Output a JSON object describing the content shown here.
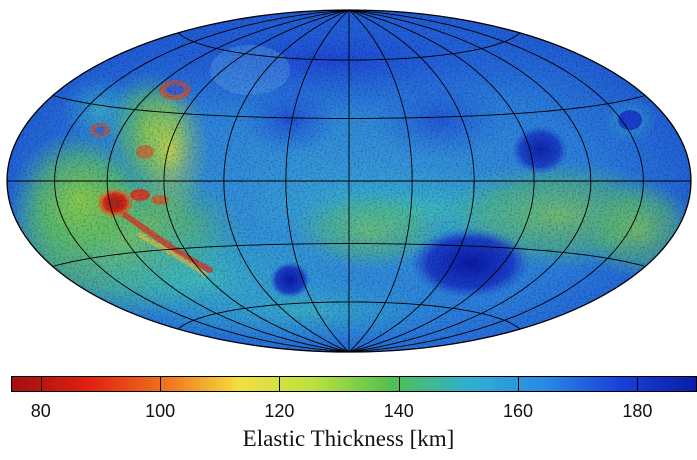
{
  "map": {
    "projection": "hammer"
  },
  "colorbar": {
    "title": "Elastic Thickness [km]",
    "min": 75,
    "max": 190,
    "ticks": [
      80,
      100,
      120,
      140,
      160,
      180
    ],
    "tick_labels": [
      "80",
      "100",
      "120",
      "140",
      "160",
      "180"
    ],
    "colors": [
      "#a01010",
      "#e02010",
      "#f07020",
      "#f2e040",
      "#b8e040",
      "#50c050",
      "#30b0d0",
      "#2a8ae6",
      "#1a3fd8",
      "#0a1ea8"
    ]
  }
}
